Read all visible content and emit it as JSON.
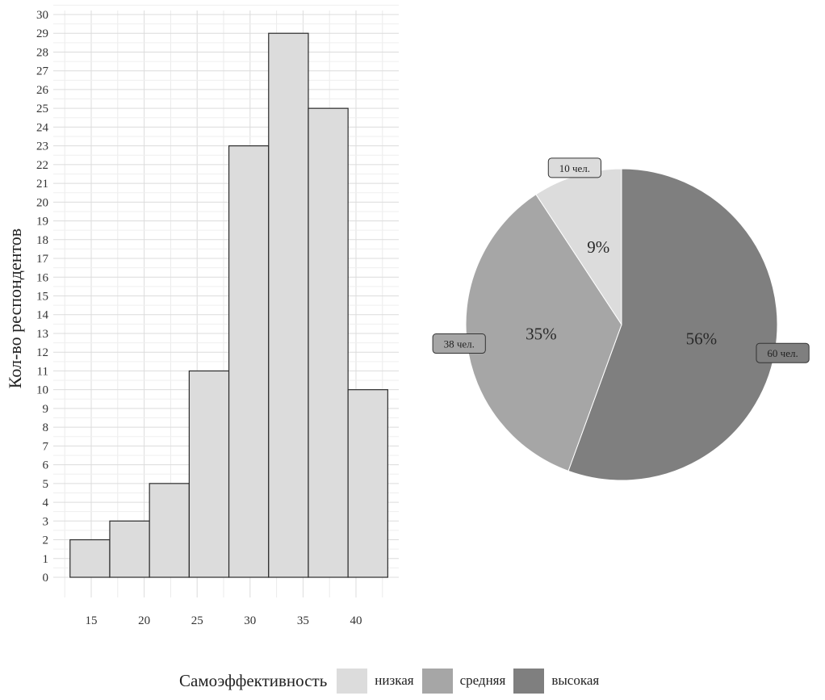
{
  "chart_data": [
    {
      "type": "bar",
      "subtype": "histogram",
      "ylabel": "Кол-во респондентов",
      "xlabel": "",
      "xlim": [
        12,
        43.5
      ],
      "ylim": [
        0,
        30
      ],
      "y_ticks": [
        0,
        1,
        2,
        3,
        4,
        5,
        6,
        7,
        8,
        9,
        10,
        11,
        12,
        13,
        14,
        15,
        16,
        17,
        18,
        19,
        20,
        21,
        22,
        23,
        24,
        25,
        26,
        27,
        28,
        29,
        30
      ],
      "x_ticks": [
        15,
        20,
        25,
        30,
        35,
        40
      ],
      "bins": [
        {
          "x0": 13.0,
          "x1": 16.75,
          "count": 2
        },
        {
          "x0": 16.75,
          "x1": 20.5,
          "count": 3
        },
        {
          "x0": 20.5,
          "x1": 24.25,
          "count": 5
        },
        {
          "x0": 24.25,
          "x1": 28.0,
          "count": 11
        },
        {
          "x0": 28.0,
          "x1": 31.75,
          "count": 23
        },
        {
          "x0": 31.75,
          "x1": 35.5,
          "count": 29
        },
        {
          "x0": 35.5,
          "x1": 39.25,
          "count": 25
        },
        {
          "x0": 39.25,
          "x1": 43.0,
          "count": 10
        }
      ],
      "bar_color": "#dcdcdc",
      "grid": true
    },
    {
      "type": "pie",
      "slices": [
        {
          "label": "высокая",
          "count": 60,
          "count_label": "60 чел.",
          "percent_label": "56%",
          "color": "#7f7f7f"
        },
        {
          "label": "средняя",
          "count": 38,
          "count_label": "38 чел.",
          "percent_label": "35%",
          "color": "#a6a6a6"
        },
        {
          "label": "низкая",
          "count": 10,
          "count_label": "10 чел.",
          "percent_label": "9%",
          "color": "#dcdcdc"
        }
      ],
      "start": "top, clockwise"
    }
  ],
  "legend": {
    "title": "Самоэффективность",
    "items": [
      {
        "label": "низкая",
        "color": "#dcdcdc"
      },
      {
        "label": "средняя",
        "color": "#a6a6a6"
      },
      {
        "label": "высокая",
        "color": "#7f7f7f"
      }
    ]
  }
}
